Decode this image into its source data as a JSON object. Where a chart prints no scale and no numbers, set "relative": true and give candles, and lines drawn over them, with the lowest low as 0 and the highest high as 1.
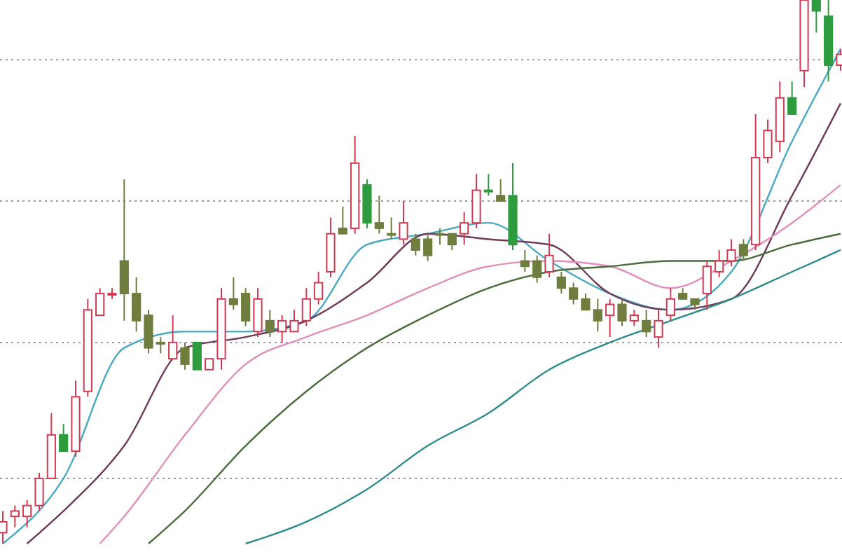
{
  "chart_data": {
    "type": "candlestick",
    "relative": true,
    "ref_lines": [
      {
        "axis": "y",
        "value": 0.12,
        "color": "#999999",
        "line_style": "dotted"
      },
      {
        "axis": "y",
        "value": 0.37,
        "color": "#999999",
        "line_style": "dotted"
      },
      {
        "axis": "y",
        "value": 0.63,
        "color": "#999999",
        "line_style": "dotted"
      },
      {
        "axis": "y",
        "value": 0.89,
        "color": "#999999",
        "line_style": "dotted"
      }
    ],
    "categories": [
      null,
      null,
      null,
      null,
      null,
      null,
      null,
      null,
      null,
      null,
      null,
      null,
      null,
      null,
      null,
      null,
      null,
      null,
      null,
      null,
      null,
      null,
      null,
      null,
      null,
      null,
      null,
      null,
      null,
      null,
      null,
      null,
      null,
      null,
      null,
      null,
      null,
      null,
      null,
      null,
      null,
      null,
      null,
      null,
      null,
      null,
      null,
      null,
      null,
      null,
      null,
      null,
      null,
      null,
      null,
      null,
      null,
      null,
      null,
      null,
      null,
      null,
      null,
      null,
      null,
      null,
      null,
      null,
      null,
      null
    ],
    "ohlc": [
      [
        0.02,
        0.06,
        0,
        0.04
      ],
      [
        0.05,
        0.07,
        0.03,
        0.06
      ],
      [
        0.05,
        0.08,
        0.03,
        0.07
      ],
      [
        0.07,
        0.13,
        0.06,
        0.12
      ],
      [
        0.12,
        0.24,
        0.12,
        0.2
      ],
      [
        0.2,
        0.22,
        0.17,
        0.17
      ],
      [
        0.17,
        0.3,
        0.16,
        0.27
      ],
      [
        0.28,
        0.45,
        0.27,
        0.43
      ],
      [
        0.42,
        0.47,
        0.42,
        0.46
      ],
      [
        0.46,
        0.47,
        0.45,
        0.46
      ],
      [
        0.52,
        0.67,
        0.41,
        0.46
      ],
      [
        0.46,
        0.49,
        0.39,
        0.41
      ],
      [
        0.42,
        0.43,
        0.35,
        0.36
      ],
      [
        0.37,
        0.38,
        0.35,
        0.37
      ],
      [
        0.34,
        0.42,
        0.34,
        0.37
      ],
      [
        0.36,
        0.37,
        0.32,
        0.33
      ],
      [
        0.37,
        0.37,
        0.32,
        0.32
      ],
      [
        0.32,
        0.34,
        0.32,
        0.34
      ],
      [
        0.34,
        0.47,
        0.32,
        0.45
      ],
      [
        0.45,
        0.49,
        0.43,
        0.44
      ],
      [
        0.46,
        0.47,
        0.4,
        0.41
      ],
      [
        0.39,
        0.47,
        0.38,
        0.45
      ],
      [
        0.41,
        0.43,
        0.38,
        0.39
      ],
      [
        0.39,
        0.42,
        0.37,
        0.41
      ],
      [
        0.39,
        0.43,
        0.39,
        0.41
      ],
      [
        0.41,
        0.47,
        0.4,
        0.45
      ],
      [
        0.45,
        0.5,
        0.44,
        0.48
      ],
      [
        0.5,
        0.6,
        0.49,
        0.57
      ],
      [
        0.58,
        0.62,
        0.57,
        0.57
      ],
      [
        0.58,
        0.75,
        0.57,
        0.7
      ],
      [
        0.66,
        0.67,
        0.58,
        0.59
      ],
      [
        0.59,
        0.64,
        0.57,
        0.58
      ],
      [
        0.57,
        0.6,
        0.56,
        0.57
      ],
      [
        0.56,
        0.63,
        0.55,
        0.59
      ],
      [
        0.56,
        0.57,
        0.53,
        0.54
      ],
      [
        0.56,
        0.57,
        0.52,
        0.53
      ],
      [
        0.57,
        0.58,
        0.55,
        0.57
      ],
      [
        0.57,
        0.57,
        0.54,
        0.55
      ],
      [
        0.57,
        0.61,
        0.55,
        0.59
      ],
      [
        0.59,
        0.68,
        0.58,
        0.65
      ],
      [
        0.65,
        0.68,
        0.64,
        0.65
      ],
      [
        0.64,
        0.67,
        0.63,
        0.63
      ],
      [
        0.64,
        0.7,
        0.54,
        0.55
      ],
      [
        0.52,
        0.54,
        0.5,
        0.51
      ],
      [
        0.52,
        0.53,
        0.48,
        0.49
      ],
      [
        0.5,
        0.57,
        0.49,
        0.53
      ],
      [
        0.49,
        0.5,
        0.46,
        0.47
      ],
      [
        0.47,
        0.48,
        0.44,
        0.45
      ],
      [
        0.45,
        0.46,
        0.43,
        0.43
      ],
      [
        0.43,
        0.45,
        0.39,
        0.41
      ],
      [
        0.42,
        0.45,
        0.38,
        0.44
      ],
      [
        0.44,
        0.45,
        0.4,
        0.41
      ],
      [
        0.41,
        0.43,
        0.4,
        0.42
      ],
      [
        0.41,
        0.43,
        0.38,
        0.39
      ],
      [
        0.38,
        0.43,
        0.36,
        0.41
      ],
      [
        0.42,
        0.47,
        0.41,
        0.45
      ],
      [
        0.46,
        0.47,
        0.45,
        0.45
      ],
      [
        0.45,
        0.45,
        0.43,
        0.44
      ],
      [
        0.46,
        0.52,
        0.43,
        0.51
      ],
      [
        0.5,
        0.54,
        0.49,
        0.52
      ],
      [
        0.52,
        0.56,
        0.51,
        0.54
      ],
      [
        0.55,
        0.56,
        0.52,
        0.53
      ],
      [
        0.55,
        0.79,
        0.54,
        0.71
      ],
      [
        0.71,
        0.78,
        0.7,
        0.76
      ],
      [
        0.74,
        0.85,
        0.72,
        0.82
      ],
      [
        0.82,
        0.85,
        0.79,
        0.79
      ],
      [
        0.87,
        1,
        0.84,
        1
      ],
      [
        1,
        1,
        0.94,
        0.98
      ],
      [
        0.97,
        1,
        0.85,
        0.88
      ],
      [
        0.88,
        0.91,
        0.87,
        0.9
      ]
    ],
    "colors": [
      "#d23a52",
      "#d23a52",
      "#d23a52",
      "#d23a52",
      "#d23a52",
      "#2e9b3f",
      "#d23a52",
      "#d23a52",
      "#d23a52",
      "#d23a52",
      "#6f7d3e",
      "#6f7d3e",
      "#6f7d3e",
      "#6f7d3e",
      "#d23a52",
      "#6f7d3e",
      "#2e9b3f",
      "#d23a52",
      "#d23a52",
      "#6f7d3e",
      "#6f7d3e",
      "#d23a52",
      "#6f7d3e",
      "#d23a52",
      "#d23a52",
      "#d23a52",
      "#d23a52",
      "#d23a52",
      "#6f7d3e",
      "#d23a52",
      "#2e9b3f",
      "#6f7d3e",
      "#6f7d3e",
      "#d23a52",
      "#6f7d3e",
      "#6f7d3e",
      "#6f7d3e",
      "#6f7d3e",
      "#d23a52",
      "#d23a52",
      "#2e9b3f",
      "#6f7d3e",
      "#2e9b3f",
      "#6f7d3e",
      "#6f7d3e",
      "#d23a52",
      "#6f7d3e",
      "#6f7d3e",
      "#6f7d3e",
      "#6f7d3e",
      "#d23a52",
      "#6f7d3e",
      "#d23a52",
      "#6f7d3e",
      "#d23a52",
      "#d23a52",
      "#6f7d3e",
      "#6f7d3e",
      "#d23a52",
      "#d23a52",
      "#d23a52",
      "#6f7d3e",
      "#d23a52",
      "#d23a52",
      "#d23a52",
      "#2e9b3f",
      "#d23a52",
      "#2e9b3f",
      "#2e9b3f",
      "#d23a52"
    ],
    "series": [
      {
        "type": "line",
        "color": "#4aa9c0",
        "values": [
          0,
          null,
          null,
          null,
          null,
          0.12,
          null,
          null,
          null,
          null,
          0.36,
          null,
          null,
          null,
          null,
          0.39,
          null,
          null,
          null,
          null,
          0.39,
          null,
          null,
          null,
          null,
          0.41,
          null,
          null,
          null,
          null,
          0.55,
          null,
          null,
          null,
          null,
          0.57,
          null,
          null,
          null,
          null,
          0.59,
          null,
          null,
          null,
          null,
          0.52,
          null,
          null,
          null,
          null,
          0.46,
          null,
          null,
          null,
          null,
          0.43,
          null,
          null,
          null,
          null,
          0.5,
          null,
          null,
          null,
          null,
          0.74,
          null,
          null,
          null,
          0.91
        ]
      },
      {
        "type": "line",
        "color": "#6e3a5a",
        "values": [
          null,
          null,
          0,
          null,
          null,
          0.06,
          null,
          null,
          null,
          null,
          0.18,
          null,
          null,
          null,
          null,
          0.36,
          null,
          null,
          null,
          null,
          0.38,
          null,
          null,
          null,
          null,
          0.41,
          null,
          null,
          null,
          null,
          0.48,
          null,
          null,
          null,
          null,
          0.57,
          null,
          null,
          null,
          null,
          0.56,
          null,
          null,
          null,
          null,
          0.55,
          null,
          null,
          null,
          null,
          0.46,
          null,
          null,
          null,
          null,
          0.43,
          null,
          null,
          null,
          null,
          0.45,
          null,
          null,
          null,
          null,
          0.64,
          null,
          null,
          null,
          0.81
        ]
      },
      {
        "type": "line",
        "color": "#e08fb8",
        "values": [
          null,
          null,
          null,
          null,
          null,
          null,
          null,
          null,
          0,
          null,
          0.05,
          null,
          null,
          null,
          null,
          0.2,
          null,
          null,
          null,
          null,
          0.33,
          null,
          null,
          null,
          null,
          0.38,
          null,
          null,
          null,
          null,
          0.42,
          null,
          null,
          null,
          null,
          0.47,
          null,
          null,
          null,
          null,
          0.51,
          null,
          null,
          null,
          null,
          0.52,
          null,
          null,
          null,
          null,
          0.51,
          null,
          null,
          null,
          null,
          0.47,
          null,
          null,
          null,
          null,
          0.52,
          null,
          null,
          null,
          null,
          0.59,
          null,
          null,
          null,
          0.66
        ]
      },
      {
        "type": "line",
        "color": "#4a6b3a",
        "values": [
          null,
          null,
          null,
          null,
          null,
          null,
          null,
          null,
          null,
          null,
          null,
          null,
          0,
          null,
          null,
          0.06,
          null,
          null,
          null,
          null,
          0.18,
          null,
          null,
          null,
          null,
          0.28,
          null,
          null,
          null,
          null,
          0.36,
          null,
          null,
          null,
          null,
          0.42,
          null,
          null,
          null,
          null,
          0.47,
          null,
          null,
          null,
          null,
          0.5,
          null,
          null,
          null,
          null,
          0.51,
          null,
          null,
          null,
          null,
          0.52,
          null,
          null,
          null,
          null,
          0.52,
          null,
          null,
          null,
          null,
          0.55,
          null,
          null,
          null,
          0.57
        ]
      },
      {
        "type": "line",
        "color": "#2e8b8b",
        "values": [
          null,
          null,
          null,
          null,
          null,
          null,
          null,
          null,
          null,
          null,
          null,
          null,
          null,
          null,
          null,
          null,
          null,
          null,
          null,
          null,
          0,
          null,
          null,
          null,
          null,
          0.04,
          null,
          null,
          null,
          null,
          0.1,
          null,
          null,
          null,
          null,
          0.18,
          null,
          null,
          null,
          null,
          0.24,
          null,
          null,
          null,
          null,
          0.32,
          null,
          null,
          null,
          null,
          0.37,
          null,
          null,
          null,
          null,
          0.41,
          null,
          null,
          null,
          null,
          0.45,
          null,
          null,
          null,
          null,
          0.5,
          null,
          null,
          null,
          0.54
        ]
      }
    ]
  }
}
